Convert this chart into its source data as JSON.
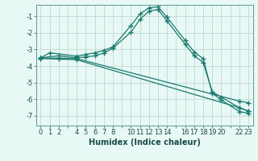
{
  "title": "",
  "xlabel": "Humidex (Indice chaleur)",
  "bg_color": "#e8f8f5",
  "grid_color": "#c0d8d4",
  "line_color": "#1a7a6e",
  "xlim": [
    -0.5,
    23.5
  ],
  "ylim": [
    -7.6,
    -0.3
  ],
  "yticks": [
    -7,
    -6,
    -5,
    -4,
    -3,
    -2,
    -1
  ],
  "xtick_labels": [
    "0",
    "1",
    "2",
    "",
    "4",
    "5",
    "6",
    "7",
    "8",
    "",
    "10",
    "11",
    "12",
    "13",
    "14",
    "",
    "16",
    "17",
    "18",
    "19",
    "20",
    "",
    "22",
    "23"
  ],
  "xtick_positions": [
    0,
    1,
    2,
    3,
    4,
    5,
    6,
    7,
    8,
    9,
    10,
    11,
    12,
    13,
    14,
    15,
    16,
    17,
    18,
    19,
    20,
    21,
    22,
    23
  ],
  "lines": [
    {
      "x": [
        0,
        1,
        4,
        5,
        6,
        7,
        8,
        10,
        11,
        12,
        13,
        14,
        16,
        17,
        18,
        19,
        20,
        22,
        23
      ],
      "y": [
        -3.5,
        -3.2,
        -3.4,
        -3.3,
        -3.2,
        -3.05,
        -2.85,
        -1.55,
        -0.85,
        -0.48,
        -0.42,
        -1.05,
        -2.45,
        -3.15,
        -3.55,
        -5.65,
        -6.05,
        -6.75,
        -6.85
      ]
    },
    {
      "x": [
        0,
        2,
        4,
        5,
        6,
        7,
        8,
        10,
        11,
        12,
        13,
        14,
        16,
        17,
        18,
        19,
        20,
        22,
        23
      ],
      "y": [
        -3.5,
        -3.38,
        -3.5,
        -3.45,
        -3.38,
        -3.22,
        -2.92,
        -1.95,
        -1.18,
        -0.68,
        -0.58,
        -1.28,
        -2.68,
        -3.38,
        -3.78,
        -5.55,
        -5.88,
        -6.52,
        -6.72
      ]
    },
    {
      "x": [
        0,
        2,
        4,
        22,
        23
      ],
      "y": [
        -3.52,
        -3.52,
        -3.55,
        -6.12,
        -6.22
      ]
    },
    {
      "x": [
        0,
        2,
        4,
        22,
        23
      ],
      "y": [
        -3.55,
        -3.58,
        -3.62,
        -6.52,
        -6.72
      ]
    }
  ]
}
